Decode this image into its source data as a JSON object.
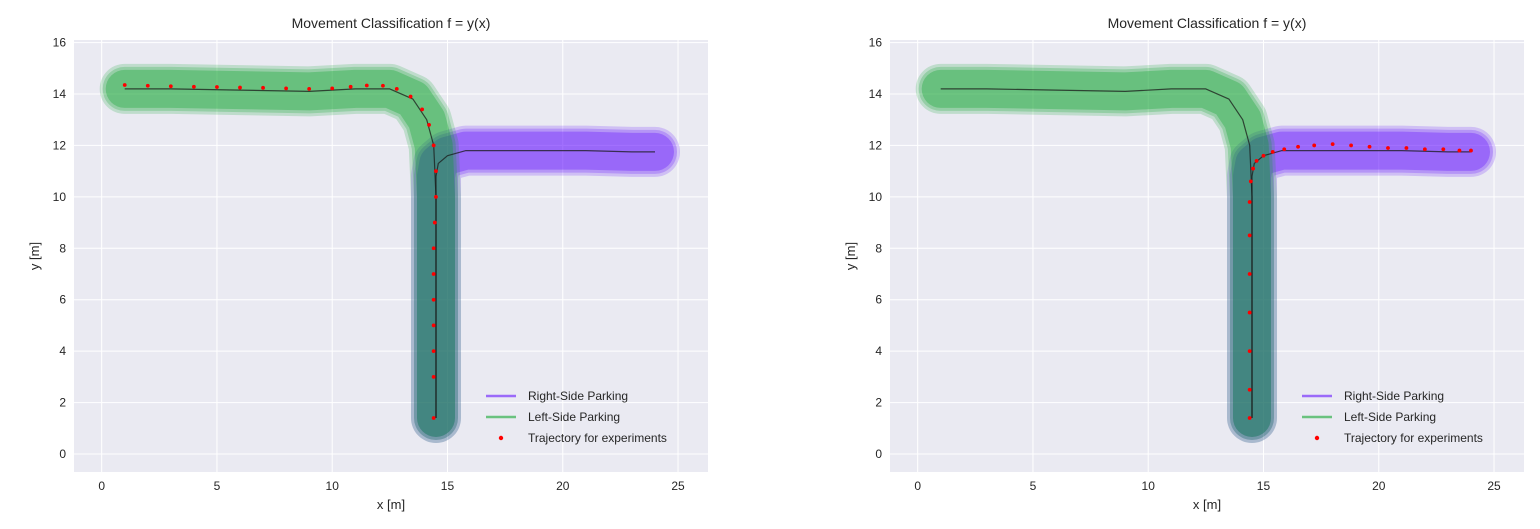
{
  "chart_data": [
    {
      "type": "line",
      "title": "Movement Classification f = y(x)",
      "xlabel": "x [m]",
      "ylabel": "y [m]",
      "xlim": [
        -1.2,
        26.3
      ],
      "ylim": [
        -0.7,
        16.1
      ],
      "xticks": [
        0,
        5,
        10,
        15,
        20,
        25
      ],
      "yticks": [
        0,
        2,
        4,
        6,
        8,
        10,
        12,
        14,
        16
      ],
      "grid": true,
      "background": "#eaeaf2",
      "legend_position": "bottom-right",
      "series": [
        {
          "name": "Right-Side Parking",
          "kind": "band",
          "color": "#5a00ff",
          "x": [
            14.5,
            14.5,
            14.5,
            14.5,
            14.5,
            14.5,
            14.5,
            14.6,
            15.0,
            15.8,
            17.0,
            19.0,
            21.0,
            23.0,
            24.0
          ],
          "y": [
            1.4,
            3.0,
            5.0,
            7.0,
            8.5,
            10.0,
            10.8,
            11.3,
            11.6,
            11.8,
            11.8,
            11.8,
            11.8,
            11.75,
            11.75
          ]
        },
        {
          "name": "Left-Side Parking",
          "kind": "band",
          "color": "#00a020",
          "x": [
            1.0,
            3.0,
            6.0,
            9.0,
            11.0,
            12.5,
            13.5,
            14.1,
            14.4,
            14.5,
            14.5,
            14.5,
            14.5,
            14.5
          ],
          "y": [
            14.2,
            14.2,
            14.15,
            14.1,
            14.2,
            14.2,
            13.8,
            13.0,
            12.0,
            10.0,
            8.0,
            6.0,
            4.0,
            1.4
          ]
        },
        {
          "name": "Trajectory for experiments",
          "kind": "points",
          "color": "#ff0000",
          "x": [
            1.0,
            2.0,
            3.0,
            4.0,
            5.0,
            6.0,
            7.0,
            8.0,
            9.0,
            10.0,
            10.8,
            11.5,
            12.2,
            12.8,
            13.4,
            13.9,
            14.2,
            14.4,
            14.5,
            14.5,
            14.45,
            14.4,
            14.4,
            14.4,
            14.4,
            14.4,
            14.4,
            14.4
          ],
          "y": [
            14.35,
            14.32,
            14.3,
            14.28,
            14.27,
            14.25,
            14.24,
            14.22,
            14.2,
            14.22,
            14.28,
            14.33,
            14.32,
            14.2,
            13.9,
            13.4,
            12.8,
            12.0,
            11.0,
            10.0,
            9.0,
            8.0,
            7.0,
            6.0,
            5.0,
            4.0,
            3.0,
            1.4
          ]
        }
      ]
    },
    {
      "type": "line",
      "title": "Movement Classification f = y(x)",
      "xlabel": "x [m]",
      "ylabel": "y [m]",
      "xlim": [
        -1.2,
        26.3
      ],
      "ylim": [
        -0.7,
        16.1
      ],
      "xticks": [
        0,
        5,
        10,
        15,
        20,
        25
      ],
      "yticks": [
        0,
        2,
        4,
        6,
        8,
        10,
        12,
        14,
        16
      ],
      "grid": true,
      "background": "#eaeaf2",
      "legend_position": "bottom-right",
      "series": [
        {
          "name": "Right-Side Parking",
          "kind": "band",
          "color": "#5a00ff",
          "x": [
            14.5,
            14.5,
            14.5,
            14.5,
            14.5,
            14.5,
            14.5,
            14.6,
            15.0,
            15.8,
            17.0,
            19.0,
            21.0,
            23.0,
            24.0
          ],
          "y": [
            1.4,
            3.0,
            5.0,
            7.0,
            8.5,
            10.0,
            10.8,
            11.3,
            11.6,
            11.8,
            11.8,
            11.8,
            11.8,
            11.75,
            11.75
          ]
        },
        {
          "name": "Left-Side Parking",
          "kind": "band",
          "color": "#00a020",
          "x": [
            1.0,
            3.0,
            6.0,
            9.0,
            11.0,
            12.5,
            13.5,
            14.1,
            14.4,
            14.5,
            14.5,
            14.5,
            14.5,
            14.5
          ],
          "y": [
            14.2,
            14.2,
            14.15,
            14.1,
            14.2,
            14.2,
            13.8,
            13.0,
            12.0,
            10.0,
            8.0,
            6.0,
            4.0,
            1.4
          ]
        },
        {
          "name": "Trajectory for experiments",
          "kind": "points",
          "color": "#ff0000",
          "x": [
            14.4,
            14.4,
            14.4,
            14.4,
            14.4,
            14.4,
            14.4,
            14.45,
            14.55,
            14.7,
            15.0,
            15.4,
            15.9,
            16.5,
            17.2,
            18.0,
            18.8,
            19.6,
            20.4,
            21.2,
            22.0,
            22.8,
            23.5,
            24.0
          ],
          "y": [
            1.4,
            2.5,
            4.0,
            5.5,
            7.0,
            8.5,
            9.8,
            10.6,
            11.1,
            11.4,
            11.6,
            11.75,
            11.85,
            11.95,
            12.0,
            12.05,
            12.0,
            11.95,
            11.9,
            11.9,
            11.85,
            11.85,
            11.8,
            11.8
          ]
        }
      ]
    }
  ]
}
